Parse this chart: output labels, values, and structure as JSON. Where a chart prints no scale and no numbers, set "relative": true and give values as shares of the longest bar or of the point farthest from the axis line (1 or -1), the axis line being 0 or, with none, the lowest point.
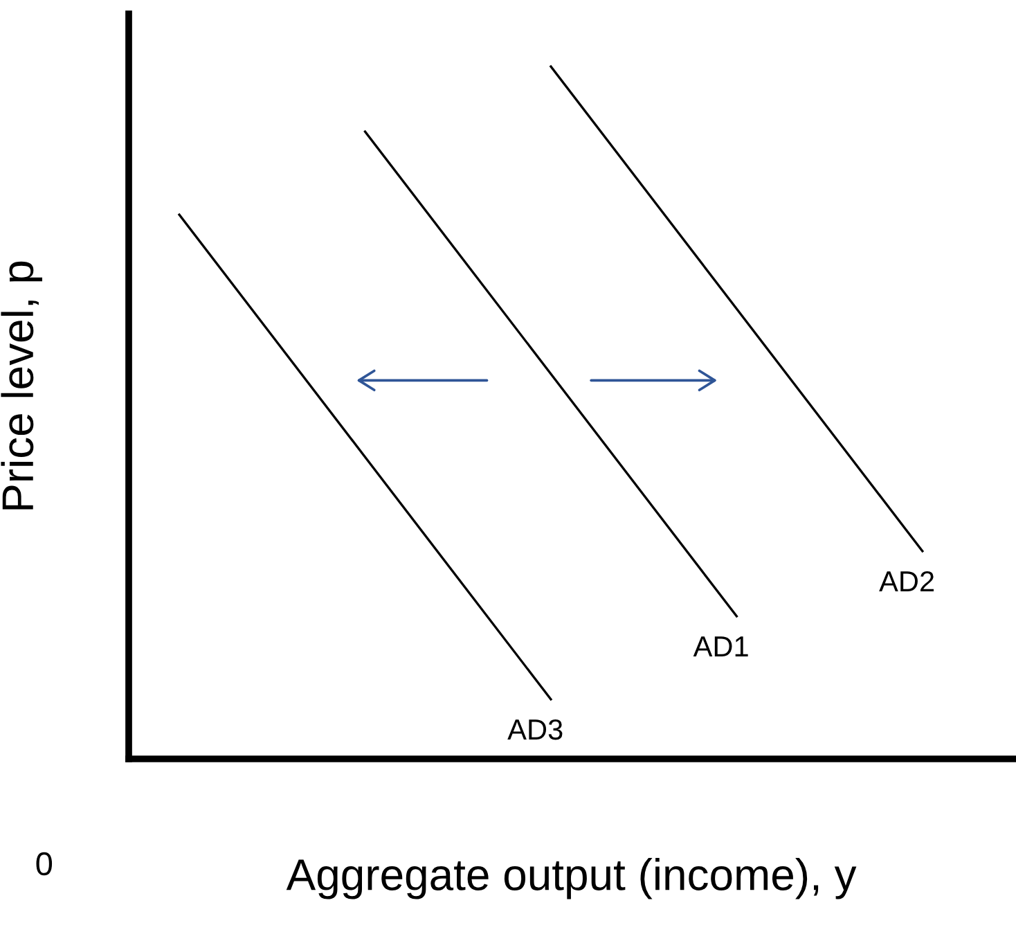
{
  "chart_data": {
    "type": "line",
    "relative": true,
    "xlabel": "Aggregate output (income), y",
    "ylabel": "Price level, p",
    "legend": false,
    "marker": "none",
    "line_style": "solid",
    "categories": [
      null,
      null,
      null,
      null,
      null,
      null,
      null,
      null,
      null
    ],
    "series": [
      {
        "name": "AD1",
        "color": "#000000",
        "values": [
          null,
          null,
          0.906,
          0.731,
          0.556,
          0.381,
          0.206,
          null,
          null
        ]
      },
      {
        "name": "AD2",
        "color": "#000000",
        "values": [
          null,
          null,
          null,
          null,
          1,
          0.825,
          0.65,
          0.475,
          0.3
        ]
      },
      {
        "name": "AD3",
        "color": "#000000",
        "values": [
          0.786,
          0.611,
          0.436,
          0.261,
          0.086,
          null,
          null,
          null,
          null
        ]
      }
    ],
    "annotations": [
      "0"
    ]
  }
}
